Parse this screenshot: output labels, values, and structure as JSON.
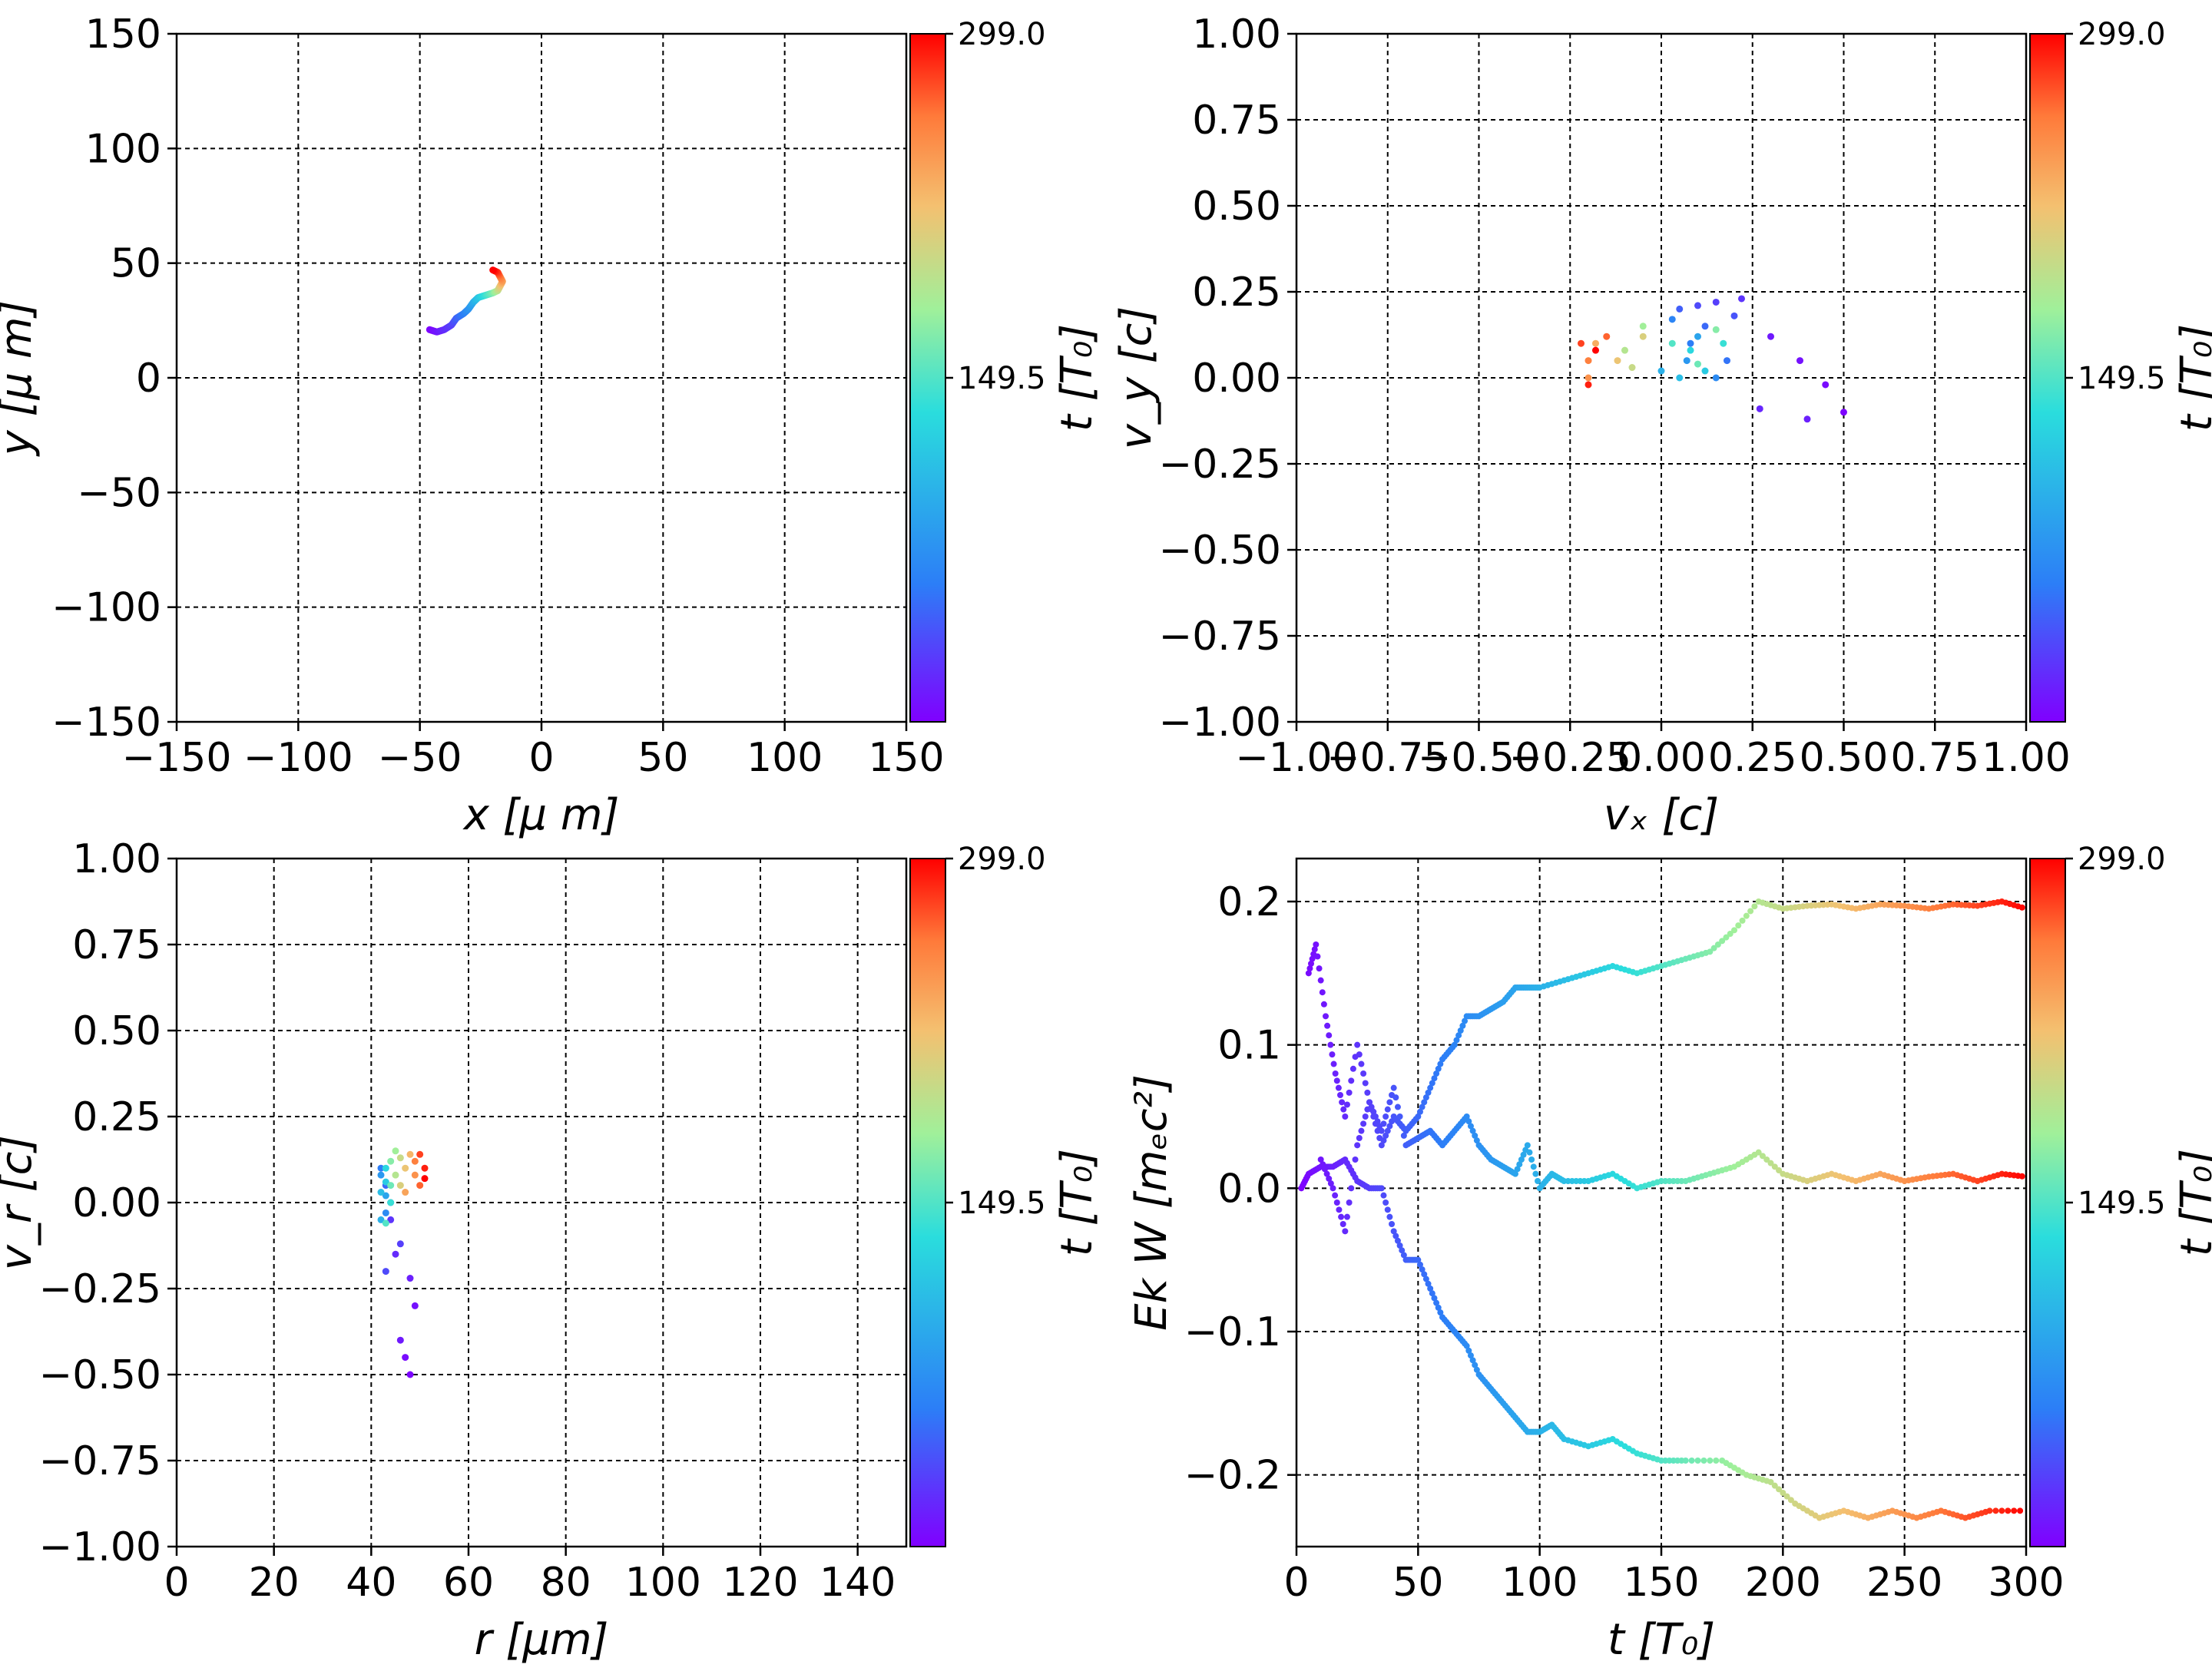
{
  "colors": {
    "stops": [
      "#8000ff",
      "#2c7ef7",
      "#2adddd",
      "#d4dd80",
      "#ff8040",
      "#ff0000"
    ]
  },
  "chart_data": [
    {
      "id": "xy",
      "type": "scatter",
      "xlabel": "x  [μ m]",
      "ylabel": "y  [μ m]",
      "xlim": [
        -150,
        150
      ],
      "ylim": [
        -150,
        150
      ],
      "xticks": [
        -150,
        -100,
        -50,
        0,
        50,
        100,
        150
      ],
      "yticks": [
        -150,
        -100,
        -50,
        0,
        50,
        100,
        150
      ],
      "xtick_labels": [
        "−150",
        "−100",
        "−50",
        "0",
        "50",
        "100",
        "150"
      ],
      "ytick_labels": [
        "−150",
        "−100",
        "−50",
        "0",
        "50",
        "100",
        "150"
      ],
      "grid": true,
      "color_by": "t",
      "points": [
        [
          -46,
          21,
          0
        ],
        [
          -43,
          20,
          10
        ],
        [
          -40,
          21,
          20
        ],
        [
          -37,
          23,
          30
        ],
        [
          -35,
          26,
          45
        ],
        [
          -32,
          28,
          60
        ],
        [
          -30,
          30,
          75
        ],
        [
          -28,
          33,
          95
        ],
        [
          -26,
          35,
          115
        ],
        [
          -23,
          36,
          140
        ],
        [
          -20,
          37,
          165
        ],
        [
          -18,
          38,
          190
        ],
        [
          -17,
          40,
          215
        ],
        [
          -16,
          42,
          240
        ],
        [
          -17,
          44,
          260
        ],
        [
          -18,
          46,
          280
        ],
        [
          -20,
          47,
          299
        ]
      ],
      "colorbar": {
        "label": "t [T₀]",
        "ticks": [
          "149.5",
          "299.0"
        ]
      }
    },
    {
      "id": "vxvy",
      "type": "scatter",
      "xlabel": "vₓ [c]",
      "ylabel": "v_y [c]",
      "xlim": [
        -1.0,
        1.0
      ],
      "ylim": [
        -1.0,
        1.0
      ],
      "xticks": [
        -1.0,
        -0.75,
        -0.5,
        -0.25,
        0.0,
        0.25,
        0.5,
        0.75,
        1.0
      ],
      "yticks": [
        -1.0,
        -0.75,
        -0.5,
        -0.25,
        0.0,
        0.25,
        0.5,
        0.75,
        1.0
      ],
      "xtick_labels": [
        "−1.00",
        "−0.75",
        "−0.50",
        "−0.25",
        "0.00",
        "0.25",
        "0.50",
        "0.75",
        "1.00"
      ],
      "ytick_labels": [
        "−1.00",
        "−0.75",
        "−0.50",
        "−0.25",
        "0.00",
        "0.25",
        "0.50",
        "0.75",
        "1.00"
      ],
      "grid": true,
      "color_by": "t",
      "points": [
        [
          0.5,
          -0.1,
          2
        ],
        [
          0.45,
          -0.02,
          5
        ],
        [
          0.38,
          0.05,
          8
        ],
        [
          0.3,
          0.12,
          12
        ],
        [
          0.4,
          -0.12,
          15
        ],
        [
          0.27,
          -0.09,
          18
        ],
        [
          0.22,
          0.23,
          25
        ],
        [
          0.15,
          0.22,
          30
        ],
        [
          0.1,
          0.21,
          35
        ],
        [
          0.2,
          0.18,
          40
        ],
        [
          0.05,
          0.2,
          45
        ],
        [
          0.12,
          0.15,
          50
        ],
        [
          0.18,
          0.05,
          55
        ],
        [
          0.08,
          0.1,
          60
        ],
        [
          0.03,
          0.17,
          65
        ],
        [
          0.15,
          0.0,
          70
        ],
        [
          0.07,
          0.05,
          80
        ],
        [
          0.1,
          0.12,
          90
        ],
        [
          0.0,
          0.02,
          100
        ],
        [
          0.05,
          0.0,
          110
        ],
        [
          0.12,
          0.02,
          120
        ],
        [
          0.08,
          0.08,
          130
        ],
        [
          0.17,
          0.1,
          140
        ],
        [
          0.03,
          0.1,
          150
        ],
        [
          0.1,
          0.04,
          160
        ],
        [
          0.15,
          0.14,
          170
        ],
        [
          -0.05,
          0.15,
          180
        ],
        [
          -0.1,
          0.08,
          190
        ],
        [
          -0.08,
          0.03,
          200
        ],
        [
          -0.05,
          0.12,
          210
        ],
        [
          -0.12,
          0.05,
          220
        ],
        [
          -0.18,
          0.1,
          235
        ],
        [
          -0.2,
          0.0,
          250
        ],
        [
          -0.2,
          0.05,
          260
        ],
        [
          -0.15,
          0.12,
          270
        ],
        [
          -0.22,
          0.1,
          280
        ],
        [
          -0.2,
          -0.02,
          290
        ],
        [
          -0.18,
          0.08,
          299
        ]
      ],
      "colorbar": {
        "label": "t [T₀]",
        "ticks": [
          "149.5",
          "299.0"
        ]
      }
    },
    {
      "id": "rvr",
      "type": "scatter",
      "xlabel": "r [μm]",
      "ylabel": "v_r [c]",
      "xlim": [
        0,
        150
      ],
      "ylim": [
        -1.0,
        1.0
      ],
      "xticks": [
        0,
        20,
        40,
        60,
        80,
        100,
        120,
        140
      ],
      "yticks": [
        -1.0,
        -0.75,
        -0.5,
        -0.25,
        0.0,
        0.25,
        0.5,
        0.75,
        1.0
      ],
      "xtick_labels": [
        "0",
        "20",
        "40",
        "60",
        "80",
        "100",
        "120",
        "140"
      ],
      "ytick_labels": [
        "−1.00",
        "−0.75",
        "−0.50",
        "−0.25",
        "0.00",
        "0.25",
        "0.50",
        "0.75",
        "1.00"
      ],
      "grid": true,
      "color_by": "t",
      "points": [
        [
          48,
          -0.5,
          2
        ],
        [
          47,
          -0.45,
          5
        ],
        [
          49,
          -0.3,
          8
        ],
        [
          46,
          -0.4,
          12
        ],
        [
          48,
          -0.22,
          15
        ],
        [
          45,
          -0.15,
          20
        ],
        [
          44,
          -0.05,
          25
        ],
        [
          46,
          -0.12,
          30
        ],
        [
          43,
          -0.2,
          35
        ],
        [
          44,
          0.0,
          40
        ],
        [
          43,
          0.05,
          50
        ],
        [
          42,
          0.1,
          60
        ],
        [
          43,
          -0.03,
          70
        ],
        [
          42,
          0.08,
          80
        ],
        [
          43,
          0.02,
          90
        ],
        [
          42,
          -0.05,
          100
        ],
        [
          42,
          0.03,
          110
        ],
        [
          43,
          0.06,
          120
        ],
        [
          43,
          0.1,
          130
        ],
        [
          44,
          0.0,
          140
        ],
        [
          43,
          -0.06,
          150
        ],
        [
          44,
          0.05,
          160
        ],
        [
          44,
          0.12,
          170
        ],
        [
          45,
          0.15,
          180
        ],
        [
          45,
          0.08,
          190
        ],
        [
          46,
          0.13,
          200
        ],
        [
          46,
          0.05,
          210
        ],
        [
          47,
          0.1,
          220
        ],
        [
          48,
          0.14,
          230
        ],
        [
          47,
          0.03,
          240
        ],
        [
          49,
          0.08,
          250
        ],
        [
          49,
          0.12,
          260
        ],
        [
          50,
          0.05,
          270
        ],
        [
          50,
          0.14,
          280
        ],
        [
          51,
          0.1,
          290
        ],
        [
          51,
          0.07,
          299
        ]
      ],
      "colorbar": {
        "label": "t [T₀]",
        "ticks": [
          "149.5",
          "299.0"
        ]
      }
    },
    {
      "id": "ekw",
      "type": "scatter",
      "xlabel": "t [T₀]",
      "ylabel": "Ek W [mₑc²]",
      "xlim": [
        0,
        300
      ],
      "ylim": [
        -0.25,
        0.23
      ],
      "xticks": [
        0,
        50,
        100,
        150,
        200,
        250,
        300
      ],
      "yticks": [
        -0.2,
        -0.1,
        0.0,
        0.1,
        0.2
      ],
      "xtick_labels": [
        "0",
        "50",
        "100",
        "150",
        "200",
        "250",
        "300"
      ],
      "ytick_labels": [
        "−0.2",
        "−0.1",
        "0.0",
        "0.1",
        "0.2"
      ],
      "grid": true,
      "color_by": "t",
      "series": [
        {
          "points": [
            [
              2,
              0.0
            ],
            [
              5,
              0.01
            ],
            [
              10,
              0.015
            ],
            [
              15,
              0.015
            ],
            [
              20,
              0.02
            ],
            [
              25,
              0.005
            ],
            [
              30,
              0.0
            ],
            [
              35,
              0.0
            ],
            [
              40,
              -0.03
            ],
            [
              45,
              -0.05
            ],
            [
              50,
              -0.05
            ],
            [
              55,
              -0.07
            ],
            [
              60,
              -0.09
            ],
            [
              65,
              -0.1
            ],
            [
              70,
              -0.11
            ],
            [
              75,
              -0.13
            ],
            [
              80,
              -0.14
            ],
            [
              85,
              -0.15
            ],
            [
              90,
              -0.16
            ],
            [
              95,
              -0.17
            ],
            [
              100,
              -0.17
            ],
            [
              105,
              -0.165
            ],
            [
              110,
              -0.175
            ],
            [
              120,
              -0.18
            ],
            [
              130,
              -0.175
            ],
            [
              140,
              -0.185
            ],
            [
              150,
              -0.19
            ],
            [
              160,
              -0.19
            ],
            [
              175,
              -0.19
            ],
            [
              185,
              -0.2
            ],
            [
              195,
              -0.205
            ],
            [
              205,
              -0.22
            ],
            [
              215,
              -0.23
            ],
            [
              225,
              -0.225
            ],
            [
              235,
              -0.23
            ],
            [
              245,
              -0.225
            ],
            [
              255,
              -0.23
            ],
            [
              265,
              -0.225
            ],
            [
              275,
              -0.23
            ],
            [
              285,
              -0.225
            ],
            [
              300,
              -0.225
            ]
          ]
        },
        {
          "points": [
            [
              10,
              0.02
            ],
            [
              15,
              0.0
            ],
            [
              20,
              -0.03
            ],
            [
              25,
              0.03
            ],
            [
              30,
              0.06
            ],
            [
              35,
              0.03
            ],
            [
              40,
              0.05
            ],
            [
              45,
              0.04
            ],
            [
              50,
              0.05
            ],
            [
              55,
              0.07
            ],
            [
              60,
              0.09
            ],
            [
              65,
              0.1
            ],
            [
              70,
              0.12
            ],
            [
              75,
              0.12
            ],
            [
              80,
              0.125
            ],
            [
              85,
              0.13
            ],
            [
              90,
              0.14
            ],
            [
              95,
              0.14
            ],
            [
              100,
              0.14
            ],
            [
              110,
              0.145
            ],
            [
              120,
              0.15
            ],
            [
              130,
              0.155
            ],
            [
              140,
              0.15
            ],
            [
              150,
              0.155
            ],
            [
              160,
              0.16
            ],
            [
              170,
              0.165
            ],
            [
              180,
              0.18
            ],
            [
              190,
              0.2
            ],
            [
              200,
              0.195
            ],
            [
              210,
              0.197
            ],
            [
              220,
              0.198
            ],
            [
              230,
              0.195
            ],
            [
              240,
              0.198
            ],
            [
              250,
              0.197
            ],
            [
              260,
              0.195
            ],
            [
              270,
              0.198
            ],
            [
              280,
              0.197
            ],
            [
              290,
              0.2
            ],
            [
              300,
              0.195
            ]
          ]
        },
        {
          "points": [
            [
              5,
              0.15
            ],
            [
              8,
              0.17
            ],
            [
              12,
              0.12
            ],
            [
              16,
              0.08
            ],
            [
              20,
              0.05
            ],
            [
              25,
              0.1
            ],
            [
              30,
              0.06
            ],
            [
              35,
              0.04
            ],
            [
              40,
              0.07
            ],
            [
              45,
              0.03
            ],
            [
              50,
              0.035
            ],
            [
              55,
              0.04
            ],
            [
              60,
              0.03
            ],
            [
              65,
              0.04
            ],
            [
              70,
              0.05
            ],
            [
              75,
              0.03
            ],
            [
              80,
              0.02
            ],
            [
              85,
              0.015
            ],
            [
              90,
              0.01
            ],
            [
              95,
              0.03
            ],
            [
              100,
              0.0
            ],
            [
              105,
              0.01
            ],
            [
              110,
              0.005
            ],
            [
              120,
              0.005
            ],
            [
              130,
              0.01
            ],
            [
              140,
              0.0
            ],
            [
              150,
              0.005
            ],
            [
              160,
              0.005
            ],
            [
              170,
              0.01
            ],
            [
              180,
              0.015
            ],
            [
              190,
              0.025
            ],
            [
              200,
              0.01
            ],
            [
              210,
              0.005
            ],
            [
              220,
              0.01
            ],
            [
              230,
              0.005
            ],
            [
              240,
              0.01
            ],
            [
              250,
              0.005
            ],
            [
              260,
              0.008
            ],
            [
              270,
              0.01
            ],
            [
              280,
              0.005
            ],
            [
              290,
              0.01
            ],
            [
              300,
              0.008
            ]
          ]
        }
      ],
      "colorbar": {
        "label": "t [T₀]",
        "ticks": [
          "149.5",
          "299.0"
        ]
      }
    }
  ]
}
